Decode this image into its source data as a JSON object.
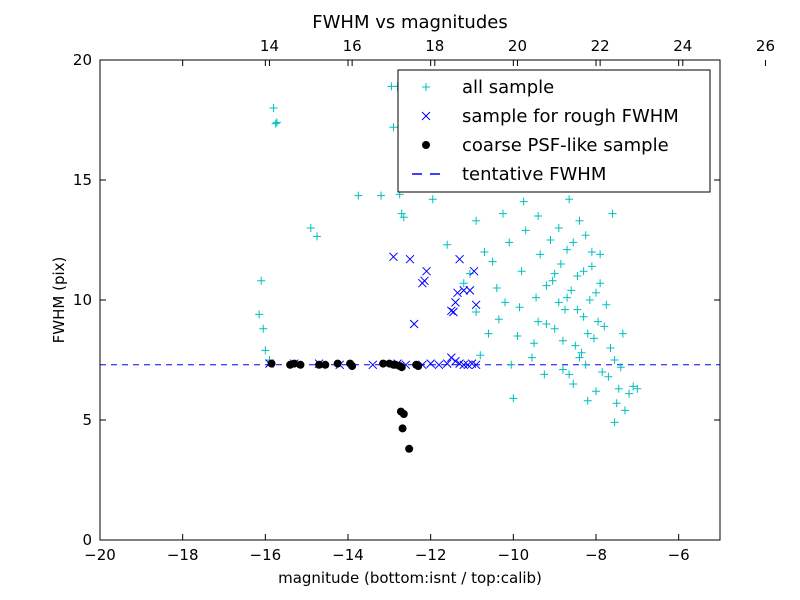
{
  "chart_data": {
    "type": "scatter",
    "title": "FWHM vs magnitudes",
    "xlabel": "magnitude (bottom:isnt / top:calib)",
    "ylabel": "FWHM (pix)",
    "xlim": [
      -20,
      -5
    ],
    "ylim": [
      0,
      20
    ],
    "top_axis": {
      "offset": 29.9,
      "ticks": [
        14,
        16,
        18,
        20,
        22,
        24,
        26
      ]
    },
    "x_ticks": [
      -20,
      -18,
      -16,
      -14,
      -12,
      -10,
      -8,
      -6
    ],
    "y_ticks": [
      0,
      5,
      10,
      15,
      20
    ],
    "x_tick_labels": [
      "−20",
      "−18",
      "−16",
      "−14",
      "−12",
      "−10",
      "−8",
      "−6"
    ],
    "y_tick_labels": [
      "0",
      "5",
      "10",
      "15",
      "20"
    ],
    "top_tick_labels": [
      "14",
      "16",
      "18",
      "20",
      "22",
      "24",
      "26"
    ],
    "legend_position": "top-right",
    "grid": false,
    "tentative_fwhm": 7.3,
    "series": [
      {
        "name": "all sample",
        "marker": "plus",
        "color": "#00bfbf",
        "points": [
          [
            -16.1,
            10.8
          ],
          [
            -16.15,
            9.4
          ],
          [
            -16.05,
            8.8
          ],
          [
            -16.0,
            7.9
          ],
          [
            -15.9,
            7.5
          ],
          [
            -15.8,
            18.0
          ],
          [
            -15.75,
            17.35
          ],
          [
            -15.72,
            17.4
          ],
          [
            -14.9,
            13.0
          ],
          [
            -14.75,
            12.65
          ],
          [
            -13.75,
            14.35
          ],
          [
            -13.2,
            14.35
          ],
          [
            -12.95,
            18.9
          ],
          [
            -12.8,
            18.9
          ],
          [
            -12.9,
            17.2
          ],
          [
            -12.75,
            14.4
          ],
          [
            -12.7,
            13.6
          ],
          [
            -12.65,
            13.45
          ],
          [
            -12.15,
            17.9
          ],
          [
            -12.0,
            17.4
          ],
          [
            -11.95,
            14.2
          ],
          [
            -11.6,
            12.3
          ],
          [
            -11.05,
            11.1
          ],
          [
            -11.2,
            10.7
          ],
          [
            -11.4,
            14.85
          ],
          [
            -11.5,
            16.2
          ],
          [
            -11.3,
            15.2
          ],
          [
            -11.1,
            14.8
          ],
          [
            -10.9,
            13.3
          ],
          [
            -10.7,
            12.0
          ],
          [
            -10.5,
            11.6
          ],
          [
            -10.9,
            9.5
          ],
          [
            -10.4,
            10.5
          ],
          [
            -10.2,
            9.9
          ],
          [
            -10.6,
            8.6
          ],
          [
            -10.8,
            7.7
          ],
          [
            -10.35,
            9.2
          ],
          [
            -10.25,
            13.6
          ],
          [
            -10.1,
            12.4
          ],
          [
            -10.05,
            7.3
          ],
          [
            -10.0,
            5.9
          ],
          [
            -9.9,
            8.5
          ],
          [
            -9.85,
            9.7
          ],
          [
            -9.8,
            11.2
          ],
          [
            -9.75,
            14.1
          ],
          [
            -9.7,
            12.9
          ],
          [
            -9.65,
            16.4
          ],
          [
            -9.6,
            15.2
          ],
          [
            -9.55,
            7.6
          ],
          [
            -9.5,
            8.2
          ],
          [
            -9.45,
            10.1
          ],
          [
            -9.4,
            13.5
          ],
          [
            -9.35,
            11.9
          ],
          [
            -9.3,
            14.8
          ],
          [
            -9.25,
            6.9
          ],
          [
            -9.2,
            9.0
          ],
          [
            -9.15,
            17.0
          ],
          [
            -9.1,
            12.5
          ],
          [
            -9.05,
            10.8
          ],
          [
            -9.0,
            8.8
          ],
          [
            -8.95,
            15.9
          ],
          [
            -8.9,
            13.0
          ],
          [
            -8.85,
            11.5
          ],
          [
            -8.8,
            7.1
          ],
          [
            -8.75,
            9.6
          ],
          [
            -8.7,
            12.1
          ],
          [
            -8.65,
            14.2
          ],
          [
            -8.6,
            10.4
          ],
          [
            -8.55,
            6.5
          ],
          [
            -8.5,
            8.1
          ],
          [
            -8.45,
            11.0
          ],
          [
            -8.4,
            13.3
          ],
          [
            -8.35,
            7.8
          ],
          [
            -8.3,
            9.3
          ],
          [
            -8.25,
            12.7
          ],
          [
            -8.2,
            5.8
          ],
          [
            -8.15,
            10.0
          ],
          [
            -8.1,
            11.4
          ],
          [
            -8.05,
            8.4
          ],
          [
            -8.0,
            6.2
          ],
          [
            -7.95,
            9.1
          ],
          [
            -7.9,
            10.7
          ],
          [
            -7.85,
            7.0
          ],
          [
            -7.8,
            8.9
          ],
          [
            -7.75,
            9.8
          ],
          [
            -7.7,
            6.8
          ],
          [
            -7.65,
            8.0
          ],
          [
            -7.6,
            13.6
          ],
          [
            -7.55,
            7.5
          ],
          [
            -7.5,
            5.7
          ],
          [
            -7.45,
            6.3
          ],
          [
            -7.4,
            7.2
          ],
          [
            -7.35,
            8.6
          ],
          [
            -7.3,
            5.4
          ],
          [
            -7.2,
            6.1
          ],
          [
            -7.1,
            6.4
          ],
          [
            -7.0,
            6.3
          ],
          [
            -7.55,
            4.9
          ],
          [
            -8.5,
            15.7
          ],
          [
            -8.6,
            16.8
          ],
          [
            -8.35,
            15.0
          ],
          [
            -8.1,
            12.0
          ],
          [
            -8.3,
            11.2
          ],
          [
            -8.45,
            9.6
          ],
          [
            -8.55,
            12.4
          ],
          [
            -8.7,
            10.1
          ],
          [
            -8.9,
            9.9
          ],
          [
            -9.0,
            11.1
          ],
          [
            -9.2,
            10.6
          ],
          [
            -8.2,
            8.6
          ],
          [
            -8.0,
            10.3
          ],
          [
            -7.9,
            11.9
          ],
          [
            -8.4,
            7.6
          ],
          [
            -8.8,
            8.3
          ],
          [
            -9.4,
            9.1
          ],
          [
            -8.65,
            6.9
          ],
          [
            -8.25,
            7.3
          ]
        ]
      },
      {
        "name": "sample for rough FWHM",
        "marker": "x",
        "color": "#0000ff",
        "points": [
          [
            -15.9,
            7.35
          ],
          [
            -15.3,
            7.35
          ],
          [
            -14.7,
            7.35
          ],
          [
            -14.2,
            7.3
          ],
          [
            -13.4,
            7.3
          ],
          [
            -12.9,
            11.8
          ],
          [
            -12.5,
            11.7
          ],
          [
            -12.4,
            9.0
          ],
          [
            -12.2,
            10.7
          ],
          [
            -12.15,
            10.8
          ],
          [
            -12.1,
            11.2
          ],
          [
            -11.3,
            11.7
          ],
          [
            -11.2,
            10.4
          ],
          [
            -11.35,
            10.3
          ],
          [
            -11.4,
            9.9
          ],
          [
            -11.45,
            9.5
          ],
          [
            -11.5,
            9.55
          ],
          [
            -11.05,
            10.4
          ],
          [
            -10.95,
            11.2
          ],
          [
            -10.9,
            9.8
          ],
          [
            -11.5,
            7.6
          ],
          [
            -11.4,
            7.45
          ],
          [
            -11.3,
            7.35
          ],
          [
            -11.2,
            7.3
          ],
          [
            -11.1,
            7.3
          ],
          [
            -11.0,
            7.35
          ],
          [
            -10.9,
            7.3
          ],
          [
            -12.2,
            7.3
          ],
          [
            -12.0,
            7.35
          ],
          [
            -11.8,
            7.3
          ],
          [
            -11.6,
            7.35
          ],
          [
            -12.6,
            7.3
          ],
          [
            -12.8,
            7.35
          ]
        ]
      },
      {
        "name": "coarse PSF-like sample",
        "marker": "dot",
        "color": "#000000",
        "points": [
          [
            -15.85,
            7.35
          ],
          [
            -15.4,
            7.3
          ],
          [
            -15.3,
            7.35
          ],
          [
            -15.15,
            7.3
          ],
          [
            -14.7,
            7.3
          ],
          [
            -14.55,
            7.3
          ],
          [
            -14.25,
            7.35
          ],
          [
            -13.95,
            7.35
          ],
          [
            -13.9,
            7.25
          ],
          [
            -13.15,
            7.35
          ],
          [
            -13.0,
            7.35
          ],
          [
            -12.9,
            7.3
          ],
          [
            -12.85,
            7.3
          ],
          [
            -12.75,
            7.25
          ],
          [
            -12.7,
            7.2
          ],
          [
            -12.35,
            7.3
          ],
          [
            -12.3,
            7.25
          ],
          [
            -12.72,
            5.35
          ],
          [
            -12.65,
            5.25
          ],
          [
            -12.68,
            4.65
          ],
          [
            -12.52,
            3.8
          ]
        ]
      }
    ],
    "legend": [
      {
        "label": "all sample",
        "marker": "plus",
        "color": "#00bfbf"
      },
      {
        "label": "sample for rough FWHM",
        "marker": "x",
        "color": "#0000ff"
      },
      {
        "label": "coarse PSF-like sample",
        "marker": "dot",
        "color": "#000000"
      },
      {
        "label": "tentative FWHM",
        "marker": "dash",
        "color": "#0000ff"
      }
    ]
  }
}
